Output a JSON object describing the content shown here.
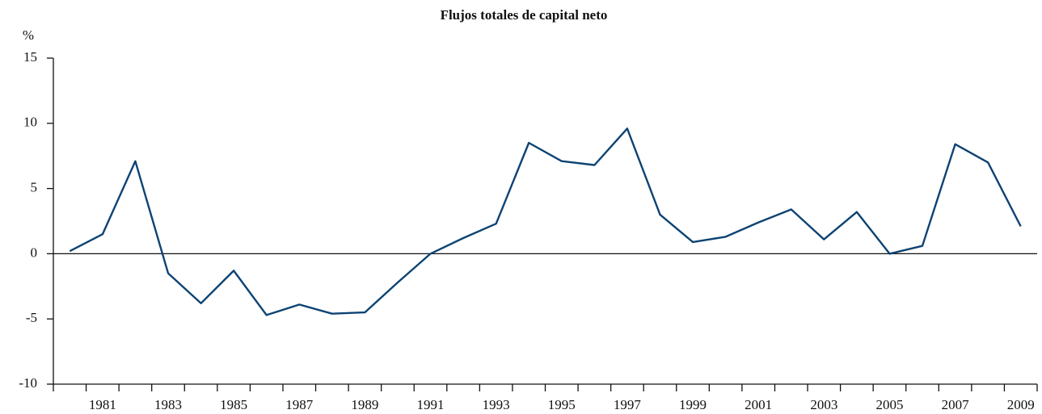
{
  "chart_data": {
    "type": "line",
    "title": "Flujos totales de capital neto",
    "y_label": "%",
    "categories": [
      null,
      "1981",
      null,
      "1983",
      null,
      "1985",
      null,
      "1987",
      null,
      "1989",
      null,
      "1991",
      null,
      "1993",
      null,
      "1995",
      null,
      "1997",
      null,
      "1999",
      null,
      "2001",
      null,
      "2003",
      null,
      "2005",
      null,
      "2007",
      null,
      "2009"
    ],
    "series": [
      {
        "name": "Flujos totales de capital neto",
        "color": "#0d4373",
        "values": [
          0.2,
          1.5,
          7.1,
          -1.5,
          -3.8,
          -1.3,
          -4.7,
          -3.9,
          -4.6,
          -4.5,
          -2.2,
          0,
          1.2,
          2.3,
          8.5,
          7.1,
          6.8,
          9.6,
          3.0,
          0.9,
          1.3,
          2.4,
          3.4,
          1.1,
          3.2,
          0,
          0.6,
          8.4,
          7.0,
          2.1
        ]
      }
    ],
    "ylim": [
      -10,
      15
    ],
    "yticks": [
      -10,
      -5,
      0,
      5,
      10,
      15
    ]
  }
}
